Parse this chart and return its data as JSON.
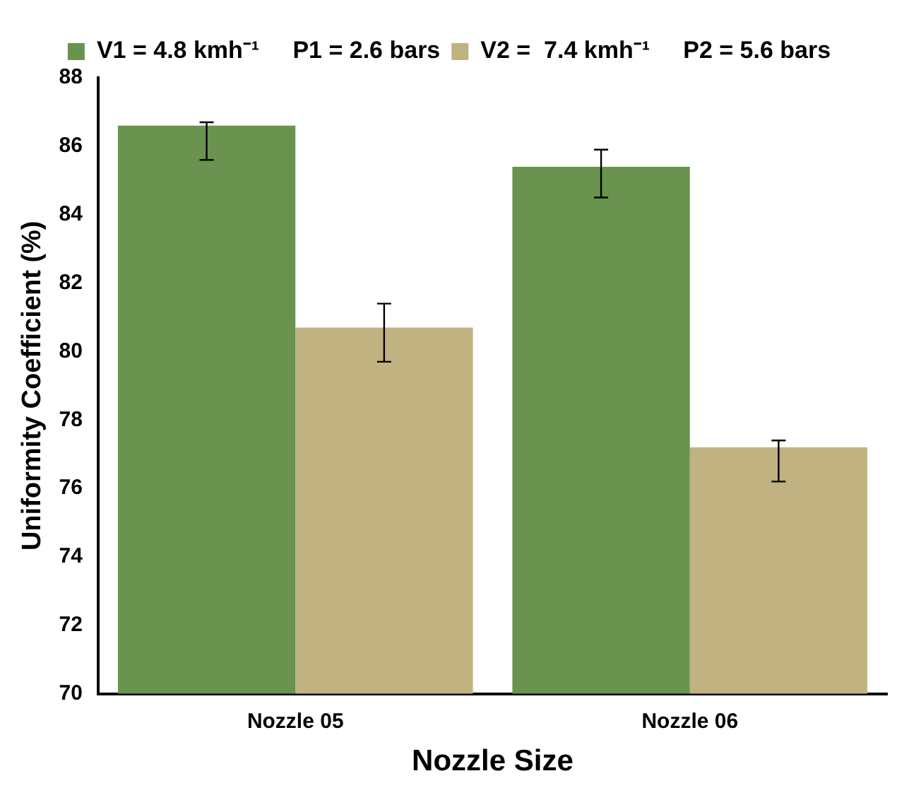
{
  "chart_data": {
    "type": "bar",
    "xlabel": "Nozzle Size",
    "ylabel": "Uniformity Coefficient (%)",
    "categories": [
      "Nozzle 05",
      "Nozzle 06"
    ],
    "series": [
      {
        "name": "V1 = 4.8 kmh⁻¹     P1 = 2.6 bars",
        "color": "#6a9350",
        "values": [
          86.6,
          85.4
        ],
        "errors": [
          [
            85.6,
            86.7
          ],
          [
            84.5,
            85.9
          ]
        ]
      },
      {
        "name": "V2 =  7.4 kmh⁻¹     P2 = 5.6 bars",
        "color": "#c1b281",
        "values": [
          80.7,
          77.2
        ],
        "errors": [
          [
            79.7,
            81.4
          ],
          [
            76.2,
            77.4
          ]
        ]
      }
    ],
    "ylim": [
      70,
      88
    ],
    "yticks": [
      70,
      72,
      74,
      76,
      78,
      80,
      82,
      84,
      86,
      88
    ],
    "grid": false,
    "legend": "top"
  }
}
